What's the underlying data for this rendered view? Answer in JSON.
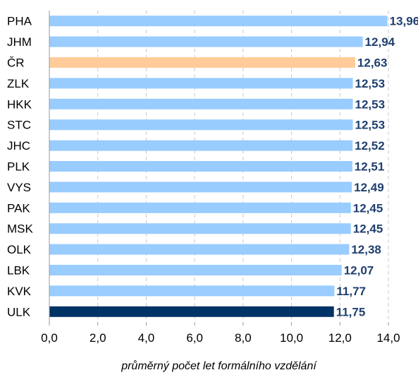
{
  "chart_data": {
    "type": "bar",
    "orientation": "horizontal",
    "categories": [
      "PHA",
      "JHM",
      "ČR",
      "ZLK",
      "HKK",
      "STC",
      "JHC",
      "PLK",
      "VYS",
      "PAK",
      "MSK",
      "OLK",
      "LBK",
      "KVK",
      "ULK"
    ],
    "values": [
      13.96,
      12.94,
      12.63,
      12.53,
      12.53,
      12.53,
      12.52,
      12.51,
      12.49,
      12.45,
      12.45,
      12.38,
      12.07,
      11.77,
      11.75
    ],
    "value_labels": [
      "13,96",
      "12,94",
      "12,63",
      "12,53",
      "12,53",
      "12,53",
      "12,52",
      "12,51",
      "12,49",
      "12,45",
      "12,45",
      "12,38",
      "12,07",
      "11,77",
      "11,75"
    ],
    "xlabel": "průměrný počet let formálního vzdělání",
    "xlim": [
      0,
      14
    ],
    "x_ticks": [
      0,
      2,
      4,
      6,
      8,
      10,
      12,
      14
    ],
    "x_tick_labels": [
      "0,0",
      "2,0",
      "4,0",
      "6,0",
      "8,0",
      "10,0",
      "12,0",
      "14,0"
    ],
    "grid": "vertical dashed",
    "legend": "none",
    "colors": {
      "default": "#99ccff",
      "highlight_cr": "#ffcc99",
      "highlight_ulk": "#003366",
      "data_label": "#1f3f6e"
    },
    "bar_colors": [
      "default",
      "default",
      "highlight_cr",
      "default",
      "default",
      "default",
      "default",
      "default",
      "default",
      "default",
      "default",
      "default",
      "default",
      "default",
      "highlight_ulk"
    ]
  }
}
